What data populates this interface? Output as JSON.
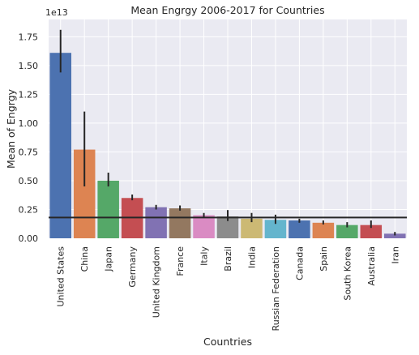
{
  "chart_data": {
    "type": "bar",
    "title": "Mean Engrgy 2006-2017 for Countries",
    "xlabel": "Countries",
    "ylabel": "Mean of Engrgy",
    "y_offset_label": "1e13",
    "categories": [
      "United States",
      "China",
      "Japan",
      "Germany",
      "United Kingdom",
      "France",
      "Italy",
      "Brazil",
      "India",
      "Russian Federation",
      "Canada",
      "Spain",
      "South Korea",
      "Australia",
      "Iran"
    ],
    "values": [
      1.61,
      0.77,
      0.5,
      0.35,
      0.27,
      0.26,
      0.2,
      0.19,
      0.17,
      0.16,
      0.155,
      0.135,
      0.115,
      0.115,
      0.04
    ],
    "error_low": [
      1.44,
      0.45,
      0.45,
      0.33,
      0.25,
      0.24,
      0.185,
      0.15,
      0.14,
      0.125,
      0.135,
      0.12,
      0.095,
      0.09,
      0.025
    ],
    "error_high": [
      1.81,
      1.1,
      0.57,
      0.38,
      0.29,
      0.285,
      0.22,
      0.245,
      0.22,
      0.205,
      0.17,
      0.155,
      0.14,
      0.155,
      0.055
    ],
    "mean_line": 0.18,
    "ylim": [
      0,
      1.9
    ],
    "yticks": [
      0.0,
      0.25,
      0.5,
      0.75,
      1.0,
      1.25,
      1.5,
      1.75
    ],
    "ytick_labels": [
      "0.00",
      "0.25",
      "0.50",
      "0.75",
      "1.00",
      "1.25",
      "1.50",
      "1.75"
    ],
    "grid": true,
    "colors": [
      "#4c72b0",
      "#dd8452",
      "#55a868",
      "#c44e52",
      "#8172b3",
      "#937860",
      "#da8bc3",
      "#8c8c8c",
      "#ccb974",
      "#64b5cd"
    ],
    "plot_background": "#eaeaf2",
    "error_color": "#262626"
  }
}
